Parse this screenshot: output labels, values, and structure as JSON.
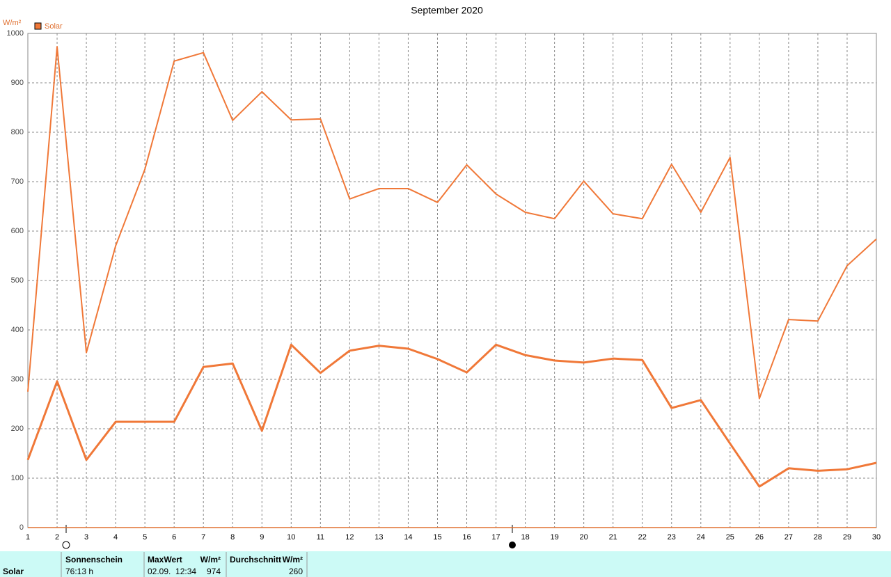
{
  "chart_data": {
    "type": "line",
    "title": "September 2020",
    "y_label": "W/m²",
    "x": [
      1,
      2,
      3,
      4,
      5,
      6,
      7,
      8,
      9,
      10,
      11,
      12,
      13,
      14,
      15,
      16,
      17,
      18,
      19,
      20,
      21,
      22,
      23,
      24,
      25,
      26,
      27,
      28,
      29,
      30
    ],
    "xlim": [
      1,
      30
    ],
    "xticks": [
      1,
      2,
      3,
      4,
      5,
      6,
      7,
      8,
      9,
      10,
      11,
      12,
      13,
      14,
      15,
      16,
      17,
      18,
      19,
      20,
      21,
      22,
      23,
      24,
      25,
      26,
      27,
      28,
      29,
      30
    ],
    "ylim": [
      0,
      1000
    ],
    "yticks": [
      0,
      100,
      200,
      300,
      400,
      500,
      600,
      700,
      800,
      900,
      1000
    ],
    "grid": true,
    "legend": "top-left",
    "series": [
      {
        "name": "Solar",
        "color": "#f07838",
        "values": [
          275,
          973,
          354,
          570,
          725,
          944,
          961,
          824,
          882,
          825,
          827,
          665,
          686,
          686,
          658,
          734,
          675,
          638,
          625,
          701,
          635,
          625,
          735,
          638,
          749,
          261,
          421,
          418,
          530,
          584
        ]
      },
      {
        "color": "#f07838",
        "values": [
          137,
          296,
          137,
          214,
          214,
          214,
          325,
          332,
          196,
          370,
          313,
          358,
          368,
          362,
          341,
          314,
          370,
          349,
          338,
          334,
          342,
          339,
          242,
          258,
          170,
          83,
          120,
          115,
          118,
          131
        ]
      }
    ]
  },
  "table": {
    "headers": [
      "Sonnenschein",
      "MaxWert",
      "W/m²",
      "Durchschnitt",
      "W/m²"
    ],
    "rows": [
      [
        "Solar",
        "76:13 h",
        "02.09.  12:34",
        "974",
        "260"
      ]
    ]
  }
}
